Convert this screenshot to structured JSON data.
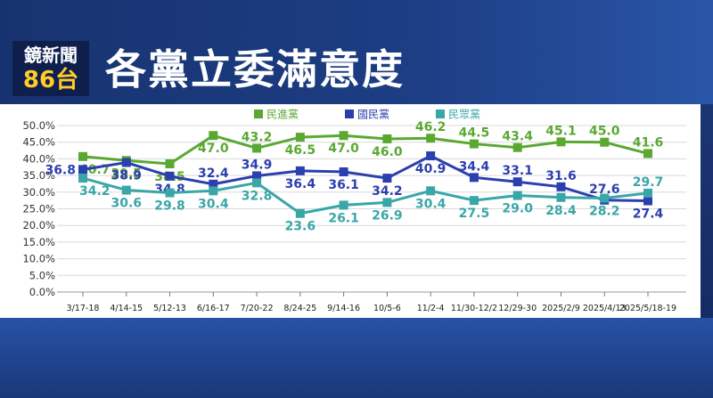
{
  "header": {
    "logo_top": "鏡新聞",
    "logo_bottom": "86台",
    "title": "各黨立委滿意度"
  },
  "colors": {
    "dpp": "#5aa832",
    "kmt": "#2c3fae",
    "tpp": "#39a6a8",
    "header_bg": "#17336f",
    "logo_accent": "#ffcc2a"
  },
  "chart_data": {
    "type": "line",
    "title": "",
    "xlabel": "",
    "ylabel": "",
    "ylim": [
      0,
      50
    ],
    "y_ticks": [
      "0.0%",
      "5.0%",
      "10.0%",
      "15.0%",
      "20.0%",
      "25.0%",
      "30.0%",
      "35.0%",
      "40.0%",
      "45.0%",
      "50.0%"
    ],
    "grid": true,
    "legend_position": "top-center",
    "categories": [
      "3/17-18",
      "4/14-15",
      "5/12-13",
      "6/16-17",
      "7/20-22",
      "8/24-25",
      "9/14-16",
      "10/5-6",
      "11/2-4",
      "11/30-12/2",
      "12/29-30",
      "2025/2/9",
      "2025/4/13",
      "2025/5/18-19"
    ],
    "series": [
      {
        "name": "民進黨",
        "color": "#5aa832",
        "values": [
          40.7,
          39.5,
          38.5,
          47.0,
          43.2,
          46.5,
          47.0,
          46.0,
          46.2,
          44.5,
          43.4,
          45.1,
          45.0,
          41.6
        ],
        "labels": [
          "40.7",
          "39.5",
          "38.5",
          "47.0",
          "43.2",
          "46.5",
          "47.0",
          "46.0",
          "46.2",
          "44.5",
          "43.4",
          "45.1",
          "45.0",
          "41.6"
        ],
        "label_side": [
          "below",
          "below",
          "below",
          "below",
          "above",
          "below",
          "below",
          "below",
          "above",
          "above",
          "above",
          "above",
          "above",
          "above"
        ]
      },
      {
        "name": "國民黨",
        "color": "#2c3fae",
        "values": [
          36.8,
          38.9,
          34.8,
          32.4,
          34.9,
          36.4,
          36.1,
          34.2,
          40.9,
          34.4,
          33.1,
          31.6,
          27.6,
          27.4
        ],
        "labels": [
          "36.8",
          "38.9",
          "34.8",
          "32.4",
          "34.9",
          "36.4",
          "36.1",
          "34.2",
          "40.9",
          "34.4",
          "33.1",
          "31.6",
          "27.6",
          "27.4"
        ],
        "label_side": [
          "left",
          "below",
          "below",
          "above",
          "above",
          "below",
          "below",
          "below",
          "below",
          "above",
          "above",
          "above",
          "above",
          "below"
        ]
      },
      {
        "name": "民眾黨",
        "color": "#39a6a8",
        "values": [
          34.2,
          30.6,
          29.8,
          30.4,
          32.8,
          23.6,
          26.1,
          26.9,
          30.4,
          27.5,
          29.0,
          28.4,
          28.2,
          29.7
        ],
        "labels": [
          "34.2",
          "30.6",
          "29.8",
          "30.4",
          "32.8",
          "23.6",
          "26.1",
          "26.9",
          "30.4",
          "27.5",
          "29.0",
          "28.4",
          "28.2",
          "29.7"
        ],
        "label_side": [
          "below",
          "below",
          "below",
          "below",
          "below",
          "below",
          "below",
          "below",
          "below",
          "below",
          "below",
          "below",
          "below",
          "above"
        ]
      }
    ]
  }
}
